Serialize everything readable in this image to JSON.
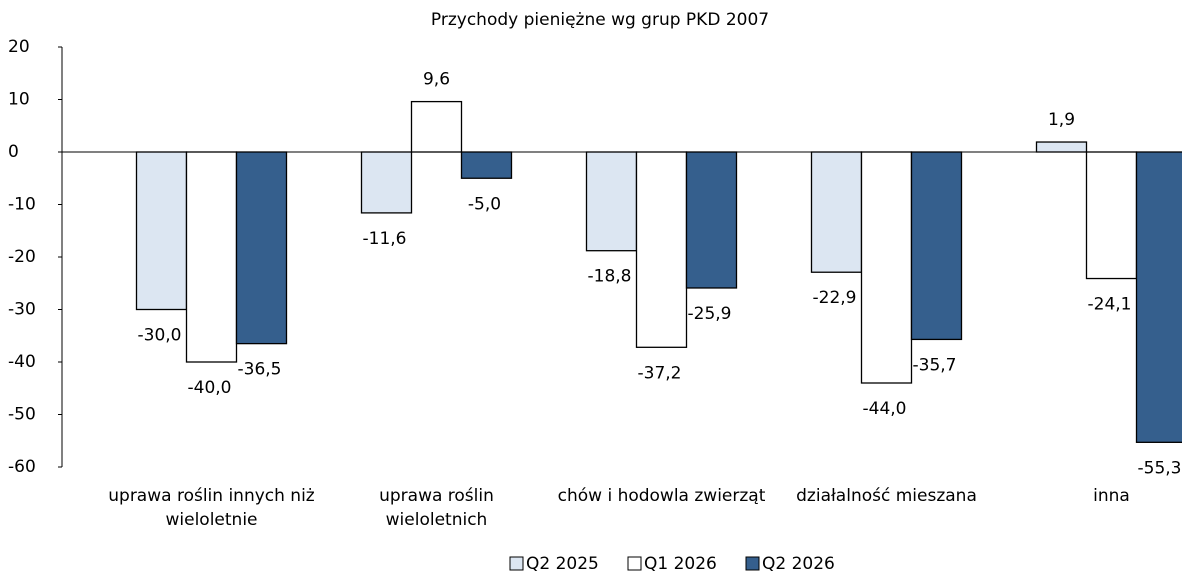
{
  "chart_data": {
    "type": "bar",
    "title": "Przychody pieniężne wg grup PKD 2007",
    "categories": [
      "uprawa roślin innych niż wieloletnie",
      "uprawa roślin wieloletnich",
      "chów i hodowla zwierząt",
      "działalność mieszana",
      "inna"
    ],
    "series": [
      {
        "name": "Q2 2025",
        "color": "#dce6f2",
        "values": [
          -30.0,
          -11.6,
          -18.8,
          -22.9,
          1.9
        ],
        "value_labels": [
          "-30,0",
          "-11,6",
          "-18,8",
          "-22,9",
          "1,9"
        ]
      },
      {
        "name": "Q1 2026",
        "color": "#ffffff",
        "values": [
          -40.0,
          9.6,
          -37.2,
          -44.0,
          -24.1
        ],
        "value_labels": [
          "-40,0",
          "9,6",
          "-37,2",
          "-44,0",
          "-24,1"
        ]
      },
      {
        "name": "Q2 2026",
        "color": "#355f8d",
        "values": [
          -36.5,
          -5.0,
          -25.9,
          -35.7,
          -55.3
        ],
        "value_labels": [
          "-36,5",
          "-5,0",
          "-25,9",
          "-35,7",
          "-55,3"
        ]
      }
    ],
    "ylim": [
      -60,
      20
    ],
    "yticks": [
      20,
      10,
      0,
      -10,
      -20,
      -30,
      -40,
      -50,
      -60
    ],
    "legend": "bottom"
  }
}
